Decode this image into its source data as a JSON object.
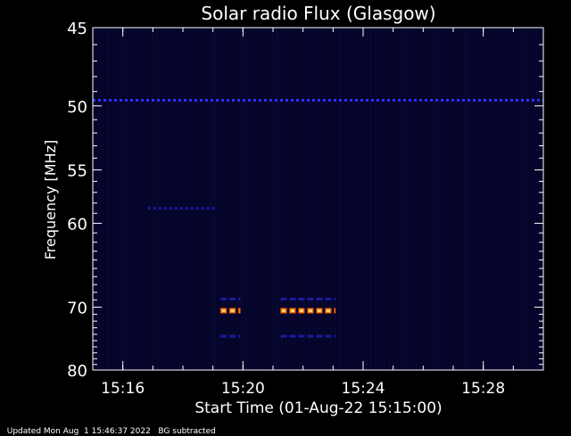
{
  "chart_data": {
    "type": "heatmap",
    "title": "Solar radio Flux (Glasgow)",
    "xlabel": "Start Time (01-Aug-22 15:15:00)",
    "ylabel": "Frequency [MHz]",
    "x_ticks": [
      "15:16",
      "15:20",
      "15:24",
      "15:28"
    ],
    "y_ticks": [
      "45",
      "50",
      "55",
      "60",
      "70",
      "80"
    ],
    "xlim": [
      "15:15",
      "15:30"
    ],
    "ylim": [
      45,
      80
    ],
    "y_scale": "reciprocal",
    "colors": {
      "background": "#000000",
      "axes": "#ffffff",
      "weak": "#1a1aa0",
      "medium": "#3030ff",
      "strong": "#ff6a00",
      "peak": "#ffd27a"
    },
    "features": [
      {
        "label": "RFI line",
        "freq_mhz": 49.6,
        "time_start": "15:15",
        "time_end": "15:30",
        "level": "medium"
      },
      {
        "label": "RFI line",
        "freq_mhz": 58.5,
        "time_start": "15:16:50",
        "time_end": "15:19:10",
        "level": "weak"
      },
      {
        "label": "burst",
        "freq_mhz": 70.5,
        "time_start": "15:19:15",
        "time_end": "15:19:55",
        "level": "strong"
      },
      {
        "label": "burst",
        "freq_mhz": 70.5,
        "time_start": "15:21:15",
        "time_end": "15:23:05",
        "level": "strong"
      },
      {
        "label": "burst",
        "freq_mhz": 68.9,
        "time_start": "15:19:15",
        "time_end": "15:19:55",
        "level": "weak"
      },
      {
        "label": "burst",
        "freq_mhz": 68.9,
        "time_start": "15:21:15",
        "time_end": "15:23:05",
        "level": "weak"
      },
      {
        "label": "burst",
        "freq_mhz": 74.3,
        "time_start": "15:19:15",
        "time_end": "15:19:55",
        "level": "weak"
      },
      {
        "label": "burst",
        "freq_mhz": 74.3,
        "time_start": "15:21:15",
        "time_end": "15:23:05",
        "level": "weak"
      }
    ],
    "grid": false,
    "legend": "none"
  },
  "footer": {
    "updated": "Updated Mon Aug  1 15:46:37 2022",
    "note": "BG subtracted"
  }
}
